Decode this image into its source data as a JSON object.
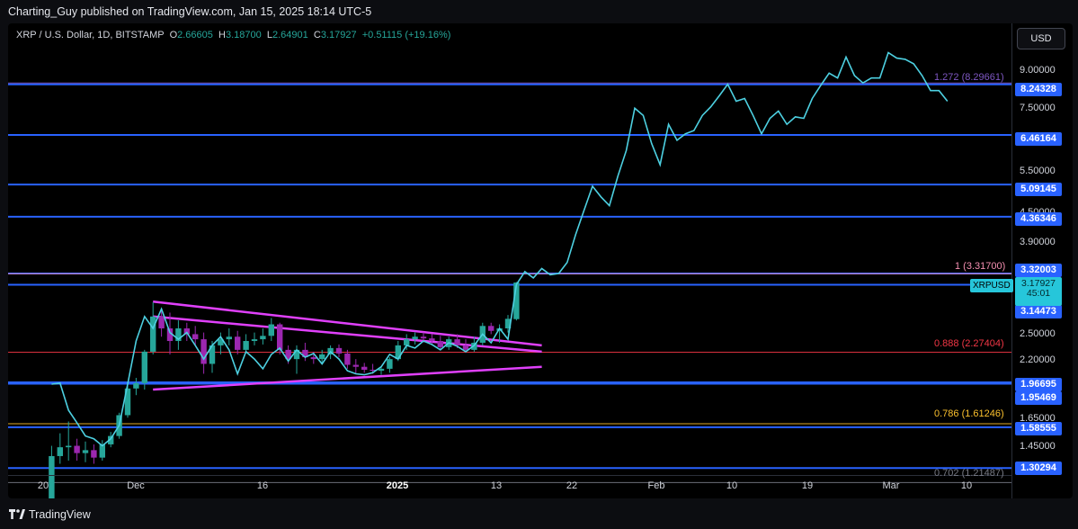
{
  "header": {
    "publisher": "Charting_Guy published on TradingView.com, Jan 15, 2025 18:14 UTC-5"
  },
  "legend": {
    "symbol": "XRP / U.S. Dollar, 1D, BITSTAMP",
    "o_key": "O",
    "open": "2.66605",
    "h_key": "H",
    "high": "3.18700",
    "l_key": "L",
    "low": "2.64901",
    "c_key": "C",
    "close": "3.17927",
    "change": "+0.51115 (+19.16%)"
  },
  "currency_button": "USD",
  "footer": {
    "brand": "TradingView"
  },
  "colors": {
    "up": "#26a69a",
    "down": "#9c27b0",
    "projection": "#4dd0e1",
    "level": "#2962ff",
    "triangle": "#e040fb",
    "fib_red": "#f23645",
    "fib_gold": "#fbc02d"
  },
  "chart_data": {
    "type": "line",
    "symbol": "XRPUSD",
    "interval": "1D",
    "scale": "log",
    "ylim": [
      1.26,
      11.05
    ],
    "y_ticks": [
      "9.00000",
      "7.50000",
      "5.50000",
      "4.50000",
      "3.90000",
      "2.50000",
      "2.20000",
      "1.65000",
      "1.45000"
    ],
    "x_ticks": [
      {
        "label": "20",
        "date": "2024-11-20"
      },
      {
        "label": "Dec",
        "date": "2024-12-01"
      },
      {
        "label": "16",
        "date": "2024-12-16"
      },
      {
        "label": "2025",
        "date": "2025-01-01"
      },
      {
        "label": "13",
        "date": "2025-01-13"
      },
      {
        "label": "22",
        "date": "2025-01-22"
      },
      {
        "label": "Feb",
        "date": "2025-02-01"
      },
      {
        "label": "10",
        "date": "2025-02-10"
      },
      {
        "label": "19",
        "date": "2025-02-19"
      },
      {
        "label": "Mar",
        "date": "2025-03-01"
      },
      {
        "label": "10",
        "date": "2025-03-10"
      }
    ],
    "horizontal_levels": [
      "8.24328",
      "6.46164",
      "5.09145",
      "4.36346",
      "3.32003",
      "3.14473",
      "1.96695",
      "1.95469",
      "1.58555",
      "1.30294"
    ],
    "fib_levels": [
      {
        "label": "1.272 (8.29661)",
        "value": 8.29661
      },
      {
        "label": "1 (3.31700)",
        "value": 3.317
      },
      {
        "label": "0.888 (2.27404)",
        "value": 2.27404
      },
      {
        "label": "0.786 (1.61246)",
        "value": 1.61246
      },
      {
        "label": "0.702 (1.21487)",
        "value": 1.21487
      }
    ],
    "last_price": {
      "label": "XRPUSD",
      "value": "3.17927",
      "countdown": "45:01"
    },
    "candles": [
      {
        "date": "2024-11-21",
        "o": 1.1,
        "h": 1.45,
        "l": 1.05,
        "c": 1.38
      },
      {
        "date": "2024-11-22",
        "o": 1.38,
        "h": 1.54,
        "l": 1.33,
        "c": 1.44
      },
      {
        "date": "2024-11-23",
        "o": 1.44,
        "h": 1.63,
        "l": 1.35,
        "c": 1.45
      },
      {
        "date": "2024-11-24",
        "o": 1.45,
        "h": 1.5,
        "l": 1.35,
        "c": 1.4
      },
      {
        "date": "2024-11-25",
        "o": 1.4,
        "h": 1.48,
        "l": 1.34,
        "c": 1.42
      },
      {
        "date": "2024-11-26",
        "o": 1.42,
        "h": 1.46,
        "l": 1.33,
        "c": 1.37
      },
      {
        "date": "2024-11-27",
        "o": 1.37,
        "h": 1.49,
        "l": 1.35,
        "c": 1.46
      },
      {
        "date": "2024-11-28",
        "o": 1.46,
        "h": 1.55,
        "l": 1.44,
        "c": 1.52
      },
      {
        "date": "2024-11-29",
        "o": 1.52,
        "h": 1.7,
        "l": 1.5,
        "c": 1.68
      },
      {
        "date": "2024-11-30",
        "o": 1.68,
        "h": 1.95,
        "l": 1.66,
        "c": 1.91
      },
      {
        "date": "2024-12-01",
        "o": 1.91,
        "h": 2.01,
        "l": 1.85,
        "c": 1.96
      },
      {
        "date": "2024-12-02",
        "o": 1.96,
        "h": 2.3,
        "l": 1.9,
        "c": 2.28
      },
      {
        "date": "2024-12-03",
        "o": 2.28,
        "h": 2.89,
        "l": 2.25,
        "c": 2.7
      },
      {
        "date": "2024-12-04",
        "o": 2.7,
        "h": 2.8,
        "l": 2.45,
        "c": 2.55
      },
      {
        "date": "2024-12-05",
        "o": 2.55,
        "h": 2.75,
        "l": 2.25,
        "c": 2.4
      },
      {
        "date": "2024-12-06",
        "o": 2.4,
        "h": 2.65,
        "l": 2.3,
        "c": 2.55
      },
      {
        "date": "2024-12-07",
        "o": 2.55,
        "h": 2.62,
        "l": 2.4,
        "c": 2.48
      },
      {
        "date": "2024-12-08",
        "o": 2.48,
        "h": 2.58,
        "l": 2.35,
        "c": 2.42
      },
      {
        "date": "2024-12-09",
        "o": 2.42,
        "h": 2.5,
        "l": 2.05,
        "c": 2.15
      },
      {
        "date": "2024-12-10",
        "o": 2.15,
        "h": 2.4,
        "l": 2.06,
        "c": 2.35
      },
      {
        "date": "2024-12-11",
        "o": 2.35,
        "h": 2.5,
        "l": 2.25,
        "c": 2.42
      },
      {
        "date": "2024-12-12",
        "o": 2.42,
        "h": 2.55,
        "l": 2.35,
        "c": 2.45
      },
      {
        "date": "2024-12-13",
        "o": 2.45,
        "h": 2.52,
        "l": 2.25,
        "c": 2.3
      },
      {
        "date": "2024-12-14",
        "o": 2.3,
        "h": 2.48,
        "l": 2.28,
        "c": 2.4
      },
      {
        "date": "2024-12-15",
        "o": 2.4,
        "h": 2.5,
        "l": 2.35,
        "c": 2.42
      },
      {
        "date": "2024-12-16",
        "o": 2.42,
        "h": 2.55,
        "l": 2.36,
        "c": 2.46
      },
      {
        "date": "2024-12-17",
        "o": 2.46,
        "h": 2.68,
        "l": 2.4,
        "c": 2.6
      },
      {
        "date": "2024-12-18",
        "o": 2.6,
        "h": 2.62,
        "l": 2.25,
        "c": 2.3
      },
      {
        "date": "2024-12-19",
        "o": 2.3,
        "h": 2.35,
        "l": 2.15,
        "c": 2.2
      },
      {
        "date": "2024-12-20",
        "o": 2.2,
        "h": 2.35,
        "l": 2.05,
        "c": 2.3
      },
      {
        "date": "2024-12-21",
        "o": 2.3,
        "h": 2.38,
        "l": 2.18,
        "c": 2.22
      },
      {
        "date": "2024-12-22",
        "o": 2.22,
        "h": 2.28,
        "l": 2.15,
        "c": 2.2
      },
      {
        "date": "2024-12-23",
        "o": 2.2,
        "h": 2.3,
        "l": 2.15,
        "c": 2.25
      },
      {
        "date": "2024-12-24",
        "o": 2.25,
        "h": 2.35,
        "l": 2.2,
        "c": 2.32
      },
      {
        "date": "2024-12-25",
        "o": 2.32,
        "h": 2.36,
        "l": 2.22,
        "c": 2.26
      },
      {
        "date": "2024-12-26",
        "o": 2.26,
        "h": 2.3,
        "l": 2.1,
        "c": 2.14
      },
      {
        "date": "2024-12-27",
        "o": 2.14,
        "h": 2.2,
        "l": 2.05,
        "c": 2.12
      },
      {
        "date": "2024-12-28",
        "o": 2.12,
        "h": 2.16,
        "l": 2.06,
        "c": 2.09
      },
      {
        "date": "2024-12-29",
        "o": 2.09,
        "h": 2.15,
        "l": 2.05,
        "c": 2.08
      },
      {
        "date": "2024-12-30",
        "o": 2.08,
        "h": 2.12,
        "l": 2.04,
        "c": 2.1
      },
      {
        "date": "2024-12-31",
        "o": 2.1,
        "h": 2.22,
        "l": 2.06,
        "c": 2.2
      },
      {
        "date": "2025-01-01",
        "o": 2.2,
        "h": 2.4,
        "l": 2.18,
        "c": 2.35
      },
      {
        "date": "2025-01-02",
        "o": 2.35,
        "h": 2.48,
        "l": 2.3,
        "c": 2.42
      },
      {
        "date": "2025-01-03",
        "o": 2.42,
        "h": 2.5,
        "l": 2.36,
        "c": 2.45
      },
      {
        "date": "2025-01-04",
        "o": 2.45,
        "h": 2.5,
        "l": 2.4,
        "c": 2.43
      },
      {
        "date": "2025-01-05",
        "o": 2.43,
        "h": 2.48,
        "l": 2.36,
        "c": 2.4
      },
      {
        "date": "2025-01-06",
        "o": 2.4,
        "h": 2.46,
        "l": 2.3,
        "c": 2.33
      },
      {
        "date": "2025-01-07",
        "o": 2.33,
        "h": 2.45,
        "l": 2.3,
        "c": 2.42
      },
      {
        "date": "2025-01-08",
        "o": 2.42,
        "h": 2.48,
        "l": 2.32,
        "c": 2.35
      },
      {
        "date": "2025-01-09",
        "o": 2.35,
        "h": 2.42,
        "l": 2.28,
        "c": 2.3
      },
      {
        "date": "2025-01-10",
        "o": 2.3,
        "h": 2.45,
        "l": 2.28,
        "c": 2.38
      },
      {
        "date": "2025-01-11",
        "o": 2.38,
        "h": 2.62,
        "l": 2.35,
        "c": 2.58
      },
      {
        "date": "2025-01-12",
        "o": 2.58,
        "h": 2.62,
        "l": 2.48,
        "c": 2.52
      },
      {
        "date": "2025-01-13",
        "o": 2.52,
        "h": 2.6,
        "l": 2.38,
        "c": 2.55
      },
      {
        "date": "2025-01-14",
        "o": 2.55,
        "h": 2.72,
        "l": 2.5,
        "c": 2.67
      },
      {
        "date": "2025-01-15",
        "o": 2.66605,
        "h": 3.187,
        "l": 2.64901,
        "c": 3.17927
      }
    ],
    "projection": [
      {
        "date": "2024-11-21",
        "y": 1.95
      },
      {
        "date": "2024-11-22",
        "y": 1.96
      },
      {
        "date": "2024-11-23",
        "y": 1.72
      },
      {
        "date": "2024-11-24",
        "y": 1.62
      },
      {
        "date": "2024-11-25",
        "y": 1.52
      },
      {
        "date": "2024-11-26",
        "y": 1.5
      },
      {
        "date": "2024-11-27",
        "y": 1.45
      },
      {
        "date": "2024-11-28",
        "y": 1.5
      },
      {
        "date": "2024-11-29",
        "y": 1.6
      },
      {
        "date": "2024-11-30",
        "y": 1.95
      },
      {
        "date": "2024-12-01",
        "y": 2.4
      },
      {
        "date": "2024-12-02",
        "y": 2.7
      },
      {
        "date": "2024-12-03",
        "y": 2.55
      },
      {
        "date": "2024-12-04",
        "y": 2.8
      },
      {
        "date": "2024-12-05",
        "y": 2.5
      },
      {
        "date": "2024-12-06",
        "y": 2.42
      },
      {
        "date": "2024-12-07",
        "y": 2.5
      },
      {
        "date": "2024-12-08",
        "y": 2.35
      },
      {
        "date": "2024-12-09",
        "y": 2.2
      },
      {
        "date": "2024-12-10",
        "y": 2.35
      },
      {
        "date": "2024-12-11",
        "y": 2.45
      },
      {
        "date": "2024-12-12",
        "y": 2.3
      },
      {
        "date": "2024-12-13",
        "y": 2.05
      },
      {
        "date": "2024-12-14",
        "y": 2.28
      },
      {
        "date": "2024-12-15",
        "y": 2.2
      },
      {
        "date": "2024-12-16",
        "y": 2.1
      },
      {
        "date": "2024-12-17",
        "y": 2.25
      },
      {
        "date": "2024-12-18",
        "y": 2.32
      },
      {
        "date": "2024-12-19",
        "y": 2.18
      },
      {
        "date": "2024-12-20",
        "y": 2.3
      },
      {
        "date": "2024-12-21",
        "y": 2.22
      },
      {
        "date": "2024-12-22",
        "y": 2.26
      },
      {
        "date": "2024-12-23",
        "y": 2.15
      },
      {
        "date": "2024-12-24",
        "y": 2.28
      },
      {
        "date": "2024-12-25",
        "y": 2.2
      },
      {
        "date": "2024-12-26",
        "y": 2.08
      },
      {
        "date": "2024-12-27",
        "y": 2.05
      },
      {
        "date": "2024-12-28",
        "y": 2.04
      },
      {
        "date": "2024-12-29",
        "y": 2.06
      },
      {
        "date": "2024-12-30",
        "y": 2.12
      },
      {
        "date": "2024-12-31",
        "y": 2.25
      },
      {
        "date": "2025-01-01",
        "y": 2.2
      },
      {
        "date": "2025-01-02",
        "y": 2.35
      },
      {
        "date": "2025-01-03",
        "y": 2.32
      },
      {
        "date": "2025-01-04",
        "y": 2.4
      },
      {
        "date": "2025-01-05",
        "y": 2.36
      },
      {
        "date": "2025-01-06",
        "y": 2.3
      },
      {
        "date": "2025-01-07",
        "y": 2.38
      },
      {
        "date": "2025-01-08",
        "y": 2.34
      },
      {
        "date": "2025-01-09",
        "y": 2.28
      },
      {
        "date": "2025-01-10",
        "y": 2.35
      },
      {
        "date": "2025-01-11",
        "y": 2.48
      },
      {
        "date": "2025-01-12",
        "y": 2.38
      },
      {
        "date": "2025-01-13",
        "y": 2.55
      },
      {
        "date": "2025-01-14",
        "y": 2.42
      },
      {
        "date": "2025-01-15",
        "y": 3.15
      },
      {
        "date": "2025-01-16",
        "y": 3.35
      },
      {
        "date": "2025-01-17",
        "y": 3.25
      },
      {
        "date": "2025-01-18",
        "y": 3.4
      },
      {
        "date": "2025-01-19",
        "y": 3.3
      },
      {
        "date": "2025-01-20",
        "y": 3.32
      },
      {
        "date": "2025-01-21",
        "y": 3.5
      },
      {
        "date": "2025-01-22",
        "y": 4.0
      },
      {
        "date": "2025-01-23",
        "y": 4.5
      },
      {
        "date": "2025-01-24",
        "y": 5.05
      },
      {
        "date": "2025-01-25",
        "y": 4.8
      },
      {
        "date": "2025-01-26",
        "y": 4.6
      },
      {
        "date": "2025-01-27",
        "y": 5.3
      },
      {
        "date": "2025-01-28",
        "y": 6.0
      },
      {
        "date": "2025-01-29",
        "y": 7.35
      },
      {
        "date": "2025-01-30",
        "y": 7.1
      },
      {
        "date": "2025-01-31",
        "y": 6.2
      },
      {
        "date": "2025-02-01",
        "y": 5.6
      },
      {
        "date": "2025-02-02",
        "y": 6.8
      },
      {
        "date": "2025-02-03",
        "y": 6.3
      },
      {
        "date": "2025-02-04",
        "y": 6.5
      },
      {
        "date": "2025-02-05",
        "y": 6.6
      },
      {
        "date": "2025-02-06",
        "y": 7.1
      },
      {
        "date": "2025-02-07",
        "y": 7.4
      },
      {
        "date": "2025-02-08",
        "y": 7.8
      },
      {
        "date": "2025-02-09",
        "y": 8.25
      },
      {
        "date": "2025-02-10",
        "y": 7.6
      },
      {
        "date": "2025-02-11",
        "y": 7.7
      },
      {
        "date": "2025-02-12",
        "y": 7.1
      },
      {
        "date": "2025-02-13",
        "y": 6.5
      },
      {
        "date": "2025-02-14",
        "y": 7.0
      },
      {
        "date": "2025-02-15",
        "y": 7.25
      },
      {
        "date": "2025-02-16",
        "y": 6.8
      },
      {
        "date": "2025-02-17",
        "y": 7.05
      },
      {
        "date": "2025-02-18",
        "y": 7.0
      },
      {
        "date": "2025-02-19",
        "y": 7.7
      },
      {
        "date": "2025-02-20",
        "y": 8.2
      },
      {
        "date": "2025-02-21",
        "y": 8.7
      },
      {
        "date": "2025-02-22",
        "y": 8.5
      },
      {
        "date": "2025-02-23",
        "y": 9.4
      },
      {
        "date": "2025-02-24",
        "y": 8.6
      },
      {
        "date": "2025-02-25",
        "y": 8.3
      },
      {
        "date": "2025-02-26",
        "y": 8.5
      },
      {
        "date": "2025-02-27",
        "y": 8.5
      },
      {
        "date": "2025-02-28",
        "y": 9.6
      },
      {
        "date": "2025-03-01",
        "y": 9.35
      },
      {
        "date": "2025-03-02",
        "y": 9.3
      },
      {
        "date": "2025-03-03",
        "y": 9.1
      },
      {
        "date": "2025-03-04",
        "y": 8.6
      },
      {
        "date": "2025-03-05",
        "y": 8.0
      },
      {
        "date": "2025-03-06",
        "y": 8.0
      },
      {
        "date": "2025-03-07",
        "y": 7.6
      }
    ],
    "trendlines": [
      {
        "from": {
          "date": "2024-12-03",
          "y": 2.9
        },
        "to": {
          "date": "2025-01-18",
          "y": 2.35
        }
      },
      {
        "from": {
          "date": "2024-12-03",
          "y": 2.7
        },
        "to": {
          "date": "2025-01-18",
          "y": 2.28
        }
      },
      {
        "from": {
          "date": "2024-12-03",
          "y": 1.9
        },
        "to": {
          "date": "2025-01-18",
          "y": 2.12
        }
      }
    ]
  }
}
